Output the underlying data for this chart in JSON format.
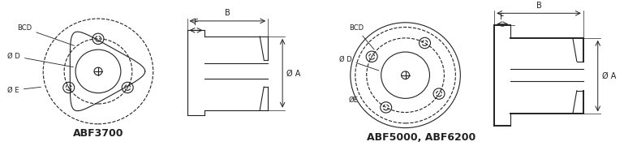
{
  "bg_color": "#f5f5f5",
  "line_color": "#333333",
  "title1": "ABF3700",
  "title2": "ABF5000, ABF6200",
  "labels_left": {
    "BCD": [
      0.04,
      0.82
    ],
    "Ø D": [
      0.02,
      0.62
    ],
    "Ø E": [
      0.02,
      0.82
    ]
  },
  "dim_B": "B",
  "dim_F": "F",
  "dim_A": "Ø A"
}
